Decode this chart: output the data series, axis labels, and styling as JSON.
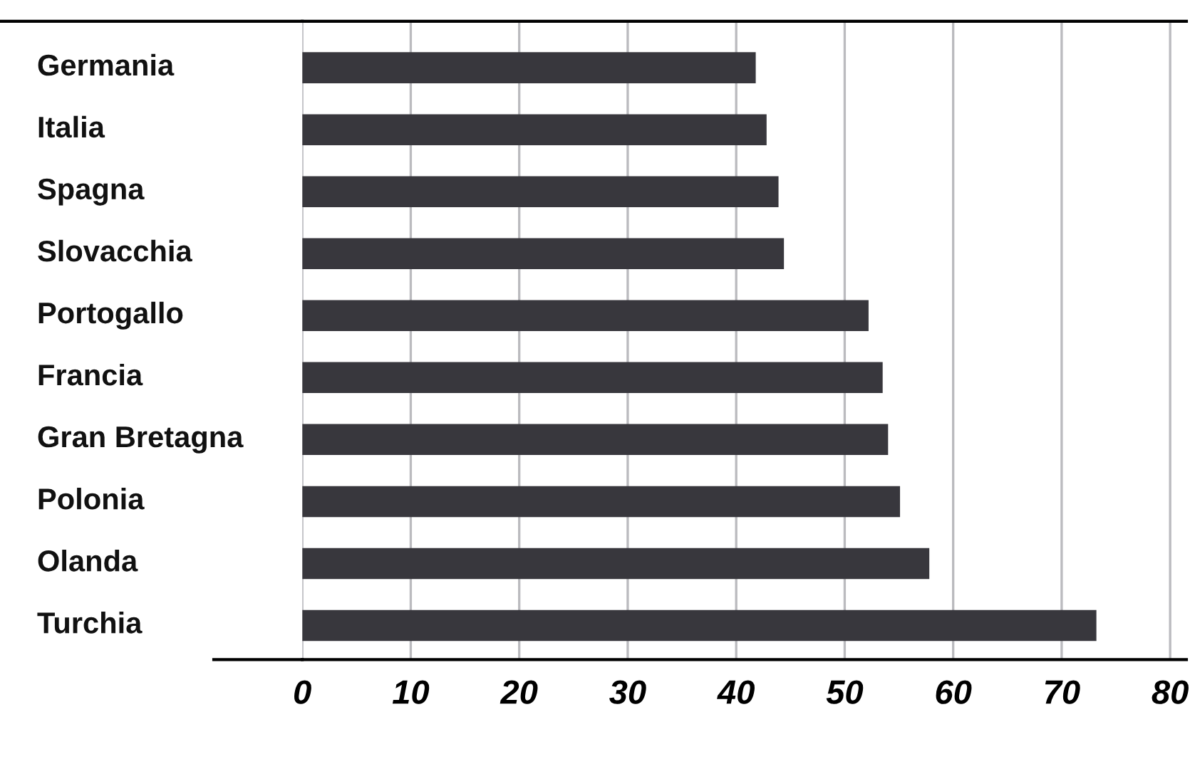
{
  "chart_data": {
    "type": "bar",
    "orientation": "horizontal",
    "categories": [
      "Germania",
      "Italia",
      "Spagna",
      "Slovacchia",
      "Portogallo",
      "Francia",
      "Gran Bretagna",
      "Polonia",
      "Olanda",
      "Turchia"
    ],
    "values": [
      41.8,
      42.8,
      43.9,
      44.4,
      52.2,
      53.5,
      54.0,
      55.1,
      57.8,
      73.2
    ],
    "color": "#38373d",
    "xlim": [
      0,
      81.5
    ],
    "xticks": [
      0,
      10,
      20,
      30,
      40,
      50,
      60,
      70,
      80
    ],
    "grid": "x"
  }
}
